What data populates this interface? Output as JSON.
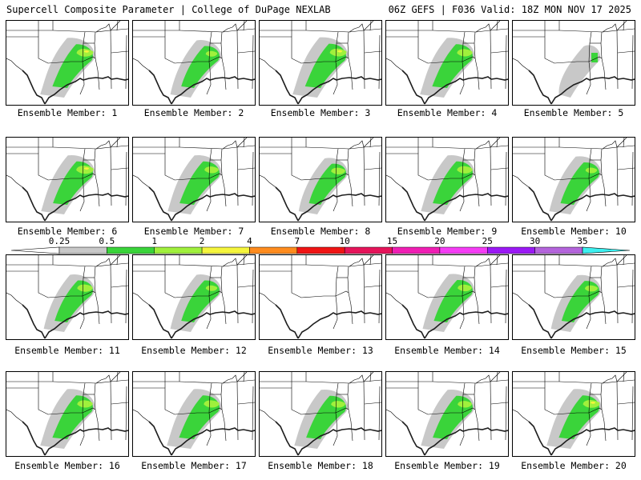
{
  "header": {
    "left": "Supercell Composite Parameter | College of DuPage NEXLAB",
    "right": "06Z GEFS | F036 Valid: 18Z MON NOV 17 2025"
  },
  "colors": {
    "gray": "#c8c8c8",
    "green": "#3ad43a",
    "lime": "#a0f03c",
    "yellow": "#f5f53c",
    "orange": "#ff8c1e",
    "red": "#f01414",
    "crimson": "#e6145a",
    "magenta": "#f01eb4",
    "pink": "#f53cf5",
    "purple": "#9b19f5",
    "lavender": "#b464dc",
    "cyan": "#3cf0f0",
    "border": "#000000",
    "coast": "#1e1e1e"
  },
  "colorbar": {
    "labels": [
      "0.25",
      "0.5",
      "1",
      "2",
      "4",
      "7",
      "10",
      "15",
      "20",
      "25",
      "30",
      "35"
    ],
    "fills": [
      "#c8c8c8",
      "#3ad43a",
      "#a0f03c",
      "#f5f53c",
      "#ff8c1e",
      "#f01414",
      "#e6145a",
      "#f01eb4",
      "#f53cf5",
      "#9b19f5",
      "#b464dc"
    ]
  },
  "members": [
    {
      "label": "Ensemble Member: 1",
      "coverage": 0.9,
      "intensity": 0.8
    },
    {
      "label": "Ensemble Member: 2",
      "coverage": 0.7,
      "intensity": 0.4
    },
    {
      "label": "Ensemble Member: 3",
      "coverage": 0.95,
      "intensity": 0.8
    },
    {
      "label": "Ensemble Member: 4",
      "coverage": 0.9,
      "intensity": 0.7
    },
    {
      "label": "Ensemble Member: 5",
      "coverage": 0.2,
      "intensity": 0.2
    },
    {
      "label": "Ensemble Member: 6",
      "coverage": 0.85,
      "intensity": 0.85
    },
    {
      "label": "Ensemble Member: 7",
      "coverage": 0.85,
      "intensity": 0.6
    },
    {
      "label": "Ensemble Member: 8",
      "coverage": 0.6,
      "intensity": 0.6
    },
    {
      "label": "Ensemble Member: 9",
      "coverage": 0.85,
      "intensity": 0.7
    },
    {
      "label": "Ensemble Member: 10",
      "coverage": 0.75,
      "intensity": 0.4
    },
    {
      "label": "Ensemble Member: 11",
      "coverage": 0.7,
      "intensity": 0.7
    },
    {
      "label": "Ensemble Member: 12",
      "coverage": 0.7,
      "intensity": 0.4
    },
    {
      "label": "Ensemble Member: 13",
      "coverage": 0.0,
      "intensity": 0.0
    },
    {
      "label": "Ensemble Member: 14",
      "coverage": 0.75,
      "intensity": 0.6
    },
    {
      "label": "Ensemble Member: 15",
      "coverage": 0.65,
      "intensity": 0.5
    },
    {
      "label": "Ensemble Member: 16",
      "coverage": 0.9,
      "intensity": 0.7
    },
    {
      "label": "Ensemble Member: 17",
      "coverage": 0.9,
      "intensity": 0.7
    },
    {
      "label": "Ensemble Member: 18",
      "coverage": 0.85,
      "intensity": 0.6
    },
    {
      "label": "Ensemble Member: 19",
      "coverage": 0.85,
      "intensity": 0.6
    },
    {
      "label": "Ensemble Member: 20",
      "coverage": 0.9,
      "intensity": 0.8
    }
  ]
}
